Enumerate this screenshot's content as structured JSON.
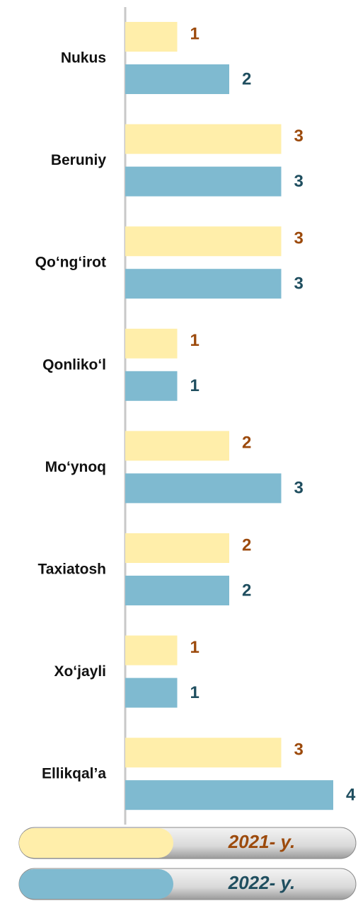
{
  "chart_data": {
    "type": "bar",
    "orientation": "horizontal",
    "categories": [
      "Nukus",
      "Beruniy",
      "Qo‘ng‘irot",
      "Qonliko‘l",
      "Mo‘ynoq",
      "Taxiatosh",
      "Xo‘jayli",
      "Ellikqal’a"
    ],
    "series": [
      {
        "name": "2021- y.",
        "color": "#ffeeaa",
        "label_color": "#9c4a0c",
        "values": [
          1,
          3,
          3,
          1,
          2,
          2,
          1,
          3
        ]
      },
      {
        "name": "2022- y.",
        "color": "#7fbad0",
        "label_color": "#1f4e5f",
        "values": [
          2,
          3,
          3,
          1,
          3,
          2,
          1,
          4
        ]
      }
    ]
  }
}
